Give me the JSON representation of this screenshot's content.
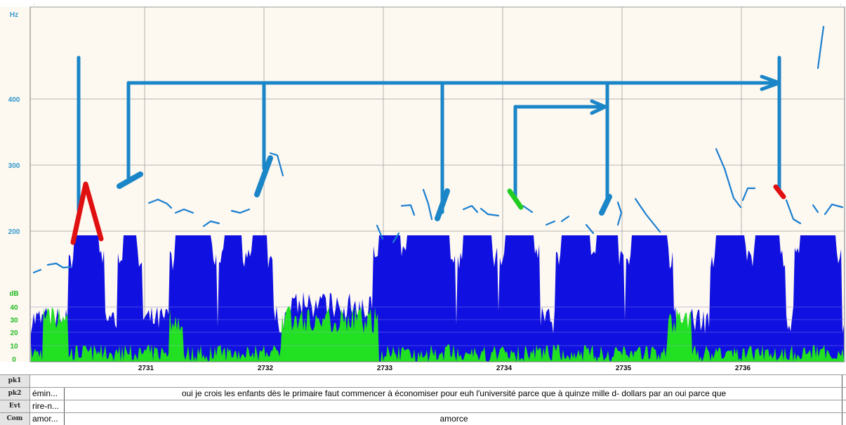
{
  "pitch_axis": {
    "unit": "Hz",
    "ticks": [
      "400",
      "300",
      "200"
    ]
  },
  "intensity_axis": {
    "unit": "dB",
    "ticks": [
      "40",
      "30",
      "20",
      "10",
      "0"
    ]
  },
  "time_axis": {
    "ticks": [
      "2731",
      "2732",
      "2733",
      "2734",
      "2735",
      "2736"
    ]
  },
  "colors": {
    "waveform": "#1010e0",
    "intensity": "#22e022",
    "pitch": "#1a7fd0",
    "annotation_blue": "#1a86c8",
    "annotation_red": "#e01010",
    "annotation_green": "#22cc22",
    "background": "#fdf8f0",
    "grid": "#a0a0a0",
    "axis_text": "#3399cc"
  },
  "tiers": [
    {
      "label": "pk1",
      "short": "",
      "text": ""
    },
    {
      "label": "pk2",
      "short": "émin...",
      "text": "oui je crois les enfants dès le primaire faut commencer à économiser pour euh l'université parce que à quinze mille d- dollars par an oui parce que"
    },
    {
      "label": "Evt",
      "short": "rire-n...",
      "text": ""
    },
    {
      "label": "Com",
      "short": "amor...",
      "text": "amorce"
    }
  ]
}
